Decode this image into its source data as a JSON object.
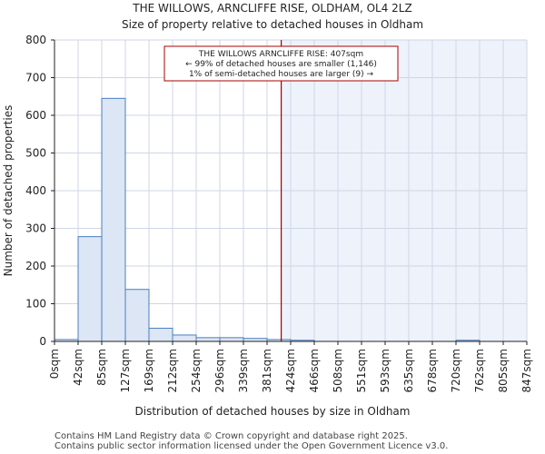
{
  "chart_data": {
    "type": "bar",
    "title": "THE WILLOWS, ARNCLIFFE RISE, OLDHAM, OL4 2LZ",
    "subtitle": "Size of property relative to detached houses in Oldham",
    "xlabel": "Distribution of detached houses by size in Oldham",
    "ylabel": "Number of detached properties",
    "ylim": [
      0,
      800
    ],
    "yticks": [
      "0",
      "100",
      "200",
      "300",
      "400",
      "500",
      "600",
      "700",
      "800"
    ],
    "bin_edges_label": [
      "0sqm",
      "42sqm",
      "85sqm",
      "127sqm",
      "169sqm",
      "212sqm",
      "254sqm",
      "296sqm",
      "339sqm",
      "381sqm",
      "424sqm",
      "466sqm",
      "508sqm",
      "551sqm",
      "593sqm",
      "635sqm",
      "678sqm",
      "720sqm",
      "762sqm",
      "805sqm",
      "847sqm"
    ],
    "values": [
      5,
      278,
      645,
      138,
      35,
      17,
      10,
      10,
      8,
      5,
      3,
      0,
      0,
      0,
      0,
      0,
      0,
      3,
      0,
      0
    ],
    "marker_value": 407,
    "marker_bin_position": 9.6,
    "annotation": {
      "line1": "THE WILLOWS ARNCLIFFE RISE: 407sqm",
      "line2": "← 99% of detached houses are smaller (1,146)",
      "line3": "1% of semi-detached houses are larger (9) →"
    },
    "colors": {
      "bar_fill": "#dce6f4",
      "bar_stroke": "#4a7fc0",
      "highlight_bg": "#eef2fb",
      "marker": "#aa0000",
      "grid": "#cfd6e4"
    }
  },
  "footer": {
    "line1": "Contains HM Land Registry data © Crown copyright and database right 2025.",
    "line2": "Contains public sector information licensed under the Open Government Licence v3.0."
  }
}
